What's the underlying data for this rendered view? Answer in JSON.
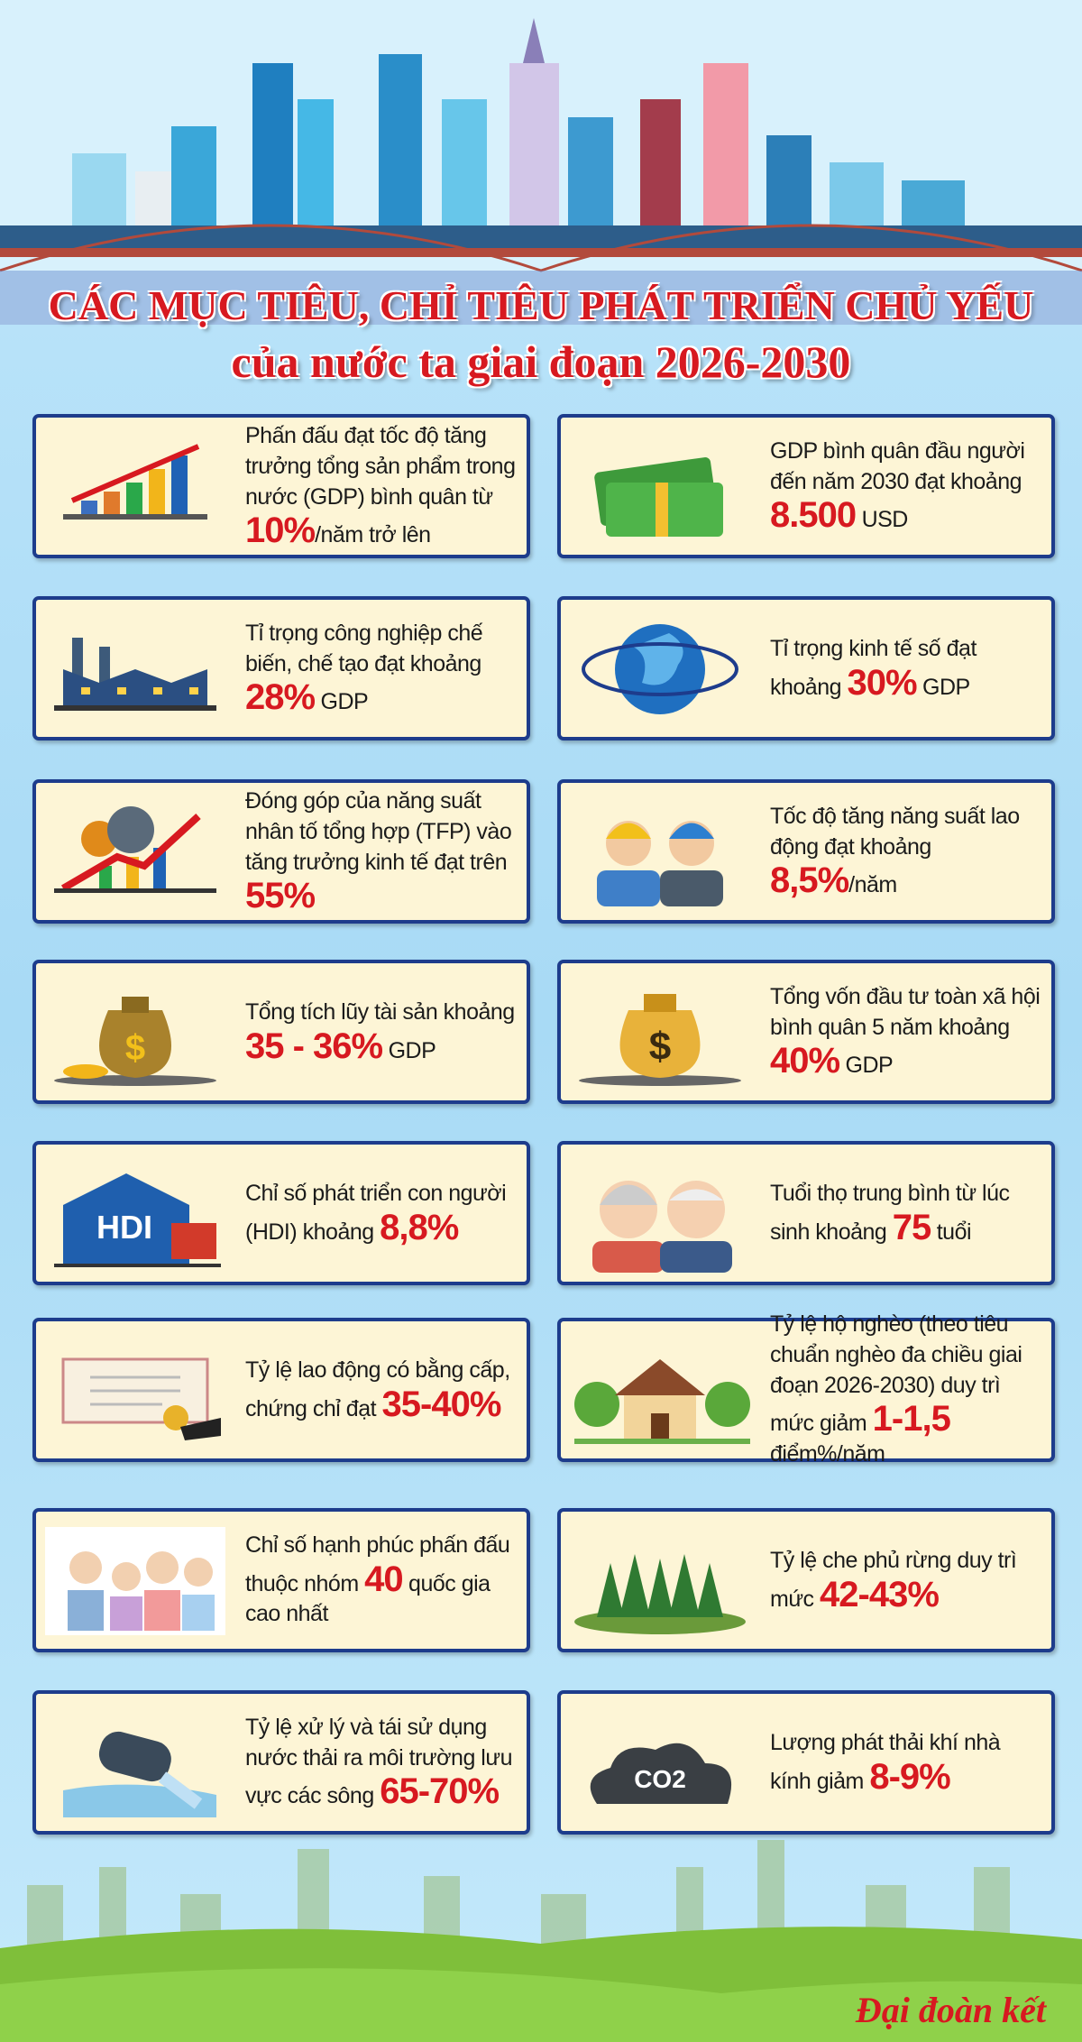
{
  "header": {
    "title_line1": "CÁC MỤC TIÊU, CHỈ TIÊU PHÁT TRIỂN CHỦ YẾU",
    "title_line2": "của nước ta giai đoạn 2026-2030"
  },
  "cards": [
    {
      "text": "Phấn đấu đạt tốc độ tăng trưởng tổng sản phẩm trong nước (GDP) bình quân từ",
      "value": "10%",
      "suffix": "/năm trở lên"
    },
    {
      "text": "GDP bình quân đầu người đến năm 2030 đạt khoảng",
      "value": "8.500",
      "suffix": "USD"
    },
    {
      "text": "Tỉ trọng công nghiệp chế biến, chế tạo đạt khoảng",
      "value": "28%",
      "suffix": "GDP"
    },
    {
      "text": "Tỉ trọng kinh tế số đạt khoảng",
      "value": "30%",
      "suffix": "GDP"
    },
    {
      "text": "Đóng góp của năng suất nhân tố tổng hợp (TFP) vào tăng trưởng kinh tế đạt trên",
      "value": "55%"
    },
    {
      "text": "Tốc độ tăng năng suất lao động đạt khoảng",
      "value": "8,5%",
      "suffix": "/năm"
    },
    {
      "text": "Tổng tích lũy tài sản khoảng",
      "value": "35 - 36%",
      "suffix": "GDP"
    },
    {
      "text": "Tổng vốn đầu tư toàn xã hội bình quân 5 năm khoảng",
      "value": "40%",
      "suffix": "GDP"
    },
    {
      "text": "Chỉ số phát triển con người (HDI) khoảng",
      "value": "8,8%",
      "icon_label": "HDI"
    },
    {
      "text": "Tuổi thọ trung bình từ lúc sinh khoảng",
      "value": "75",
      "suffix": "tuổi"
    },
    {
      "text": "Tỷ lệ lao động có bằng cấp, chứng chỉ đạt",
      "value": "35-40%"
    },
    {
      "text": "Tỷ lệ hộ nghèo (theo tiêu chuẩn nghèo đa chiều giai đoạn 2026-2030) duy trì mức giảm",
      "value": "1-1,5",
      "suffix": "điểm%/năm"
    },
    {
      "text": "Chỉ số hạnh phúc phấn đấu thuộc nhóm",
      "value": "40",
      "suffix": "quốc gia cao nhất"
    },
    {
      "text": "Tỷ lệ che phủ rừng duy trì mức",
      "value": "42-43%"
    },
    {
      "text": "Tỷ lệ xử lý và tái sử dụng nước thải ra môi trường lưu vực các sông",
      "value": "65-70%"
    },
    {
      "text": "Lượng phát thải khí nhà kính giảm",
      "value": "8-9%",
      "icon_label": "CO2"
    }
  ],
  "footer": {
    "logo": "Đại đoàn kết"
  }
}
